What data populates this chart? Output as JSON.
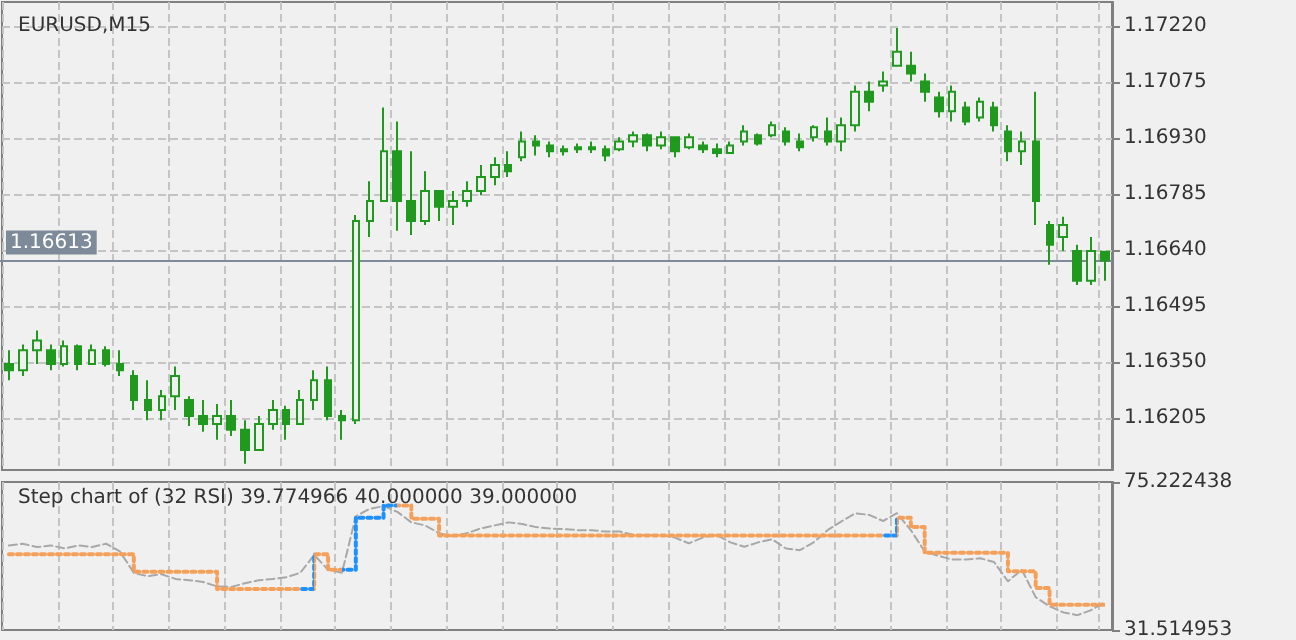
{
  "chart_data": [
    {
      "type": "candlestick",
      "title": "EURUSD,M15",
      "color": "#1f9a1f",
      "grid": true,
      "tick_labels": "y",
      "categories": [
        null,
        null,
        null,
        null,
        null,
        null,
        null,
        null,
        null,
        null,
        null,
        null,
        null,
        null,
        null,
        null,
        null,
        null,
        null,
        null,
        null,
        null,
        null,
        null,
        null,
        null,
        null,
        null,
        null,
        null,
        null,
        null,
        null,
        null,
        null,
        null,
        null,
        null,
        null,
        null,
        null,
        null,
        null,
        null,
        null,
        null,
        null,
        null,
        null,
        null,
        null,
        null,
        null,
        null,
        null,
        null,
        null,
        null,
        null,
        null,
        null,
        null,
        null,
        null,
        null,
        null,
        null,
        null,
        null,
        null,
        null,
        null,
        null,
        null,
        null,
        null,
        null,
        null,
        null,
        null
      ],
      "ohlc": [
        [
          1.16345,
          1.16381,
          1.16303,
          1.16329
        ],
        [
          1.16329,
          1.16396,
          1.16314,
          1.16381
        ],
        [
          1.16381,
          1.16432,
          1.16345,
          1.16406
        ],
        [
          1.16381,
          1.16396,
          1.16329,
          1.16345
        ],
        [
          1.16345,
          1.16406,
          1.16339,
          1.16391
        ],
        [
          1.16391,
          1.16396,
          1.16329,
          1.16345
        ],
        [
          1.16345,
          1.16396,
          1.16345,
          1.16381
        ],
        [
          1.16381,
          1.16391,
          1.16339,
          1.16345
        ],
        [
          1.16345,
          1.16381,
          1.16314,
          1.16329
        ],
        [
          1.16314,
          1.16329,
          1.16226,
          1.16252
        ],
        [
          1.16252,
          1.16303,
          1.162,
          1.16226
        ],
        [
          1.16226,
          1.16278,
          1.162,
          1.16262
        ],
        [
          1.16262,
          1.16339,
          1.16226,
          1.16314
        ],
        [
          1.16252,
          1.16262,
          1.16185,
          1.16211
        ],
        [
          1.16211,
          1.16252,
          1.1617,
          1.1619
        ],
        [
          1.1619,
          1.16242,
          1.16149,
          1.16211
        ],
        [
          1.16211,
          1.16252,
          1.16159,
          1.16175
        ],
        [
          1.16175,
          1.162,
          1.16087,
          1.16123
        ],
        [
          1.16123,
          1.16211,
          1.16123,
          1.1619
        ],
        [
          1.1619,
          1.16252,
          1.16175,
          1.16226
        ],
        [
          1.16226,
          1.16237,
          1.16149,
          1.1619
        ],
        [
          1.1619,
          1.16278,
          1.1619,
          1.16252
        ],
        [
          1.16252,
          1.16329,
          1.16226,
          1.16303
        ],
        [
          1.16303,
          1.16339,
          1.162,
          1.16211
        ],
        [
          1.16211,
          1.16226,
          1.16149,
          1.162
        ],
        [
          1.162,
          1.16731,
          1.1619,
          1.16715
        ],
        [
          1.16715,
          1.16818,
          1.16674,
          1.16767
        ],
        [
          1.16767,
          1.17009,
          1.16767,
          1.16896
        ],
        [
          1.16896,
          1.16973,
          1.1669,
          1.16767
        ],
        [
          1.16767,
          1.16896,
          1.16679,
          1.16715
        ],
        [
          1.16715,
          1.16844,
          1.16705,
          1.16793
        ],
        [
          1.16793,
          1.16793,
          1.16715,
          1.16752
        ],
        [
          1.16752,
          1.16793,
          1.16705,
          1.16767
        ],
        [
          1.16767,
          1.16818,
          1.16752,
          1.16793
        ],
        [
          1.16793,
          1.1686,
          1.16782,
          1.16829
        ],
        [
          1.16829,
          1.1688,
          1.16808,
          1.1686
        ],
        [
          1.1686,
          1.16896,
          1.16829,
          1.16844
        ],
        [
          1.1688,
          1.16947,
          1.1687,
          1.16921
        ],
        [
          1.16921,
          1.16937,
          1.16885,
          1.16911
        ],
        [
          1.16911,
          1.16921,
          1.1688,
          1.16896
        ],
        [
          1.16896,
          1.16911,
          1.16885,
          1.16901
        ],
        [
          1.16901,
          1.16916,
          1.16891,
          1.16906
        ],
        [
          1.16906,
          1.16921,
          1.16891,
          1.16901
        ],
        [
          1.16901,
          1.16911,
          1.1687,
          1.16885
        ],
        [
          1.16901,
          1.16932,
          1.16896,
          1.16921
        ],
        [
          1.16921,
          1.16947,
          1.16906,
          1.16937
        ],
        [
          1.16937,
          1.16942,
          1.16896,
          1.16911
        ],
        [
          1.16911,
          1.16947,
          1.16901,
          1.16932
        ],
        [
          1.16932,
          1.16932,
          1.1688,
          1.16896
        ],
        [
          1.16906,
          1.16942,
          1.16901,
          1.16932
        ],
        [
          1.16911,
          1.16921,
          1.16891,
          1.16901
        ],
        [
          1.16901,
          1.16916,
          1.1688,
          1.16891
        ],
        [
          1.16891,
          1.16921,
          1.16891,
          1.16911
        ],
        [
          1.16921,
          1.16963,
          1.16911,
          1.16947
        ],
        [
          1.16937,
          1.16942,
          1.16911,
          1.16916
        ],
        [
          1.16937,
          1.16973,
          1.16932,
          1.16963
        ],
        [
          1.16947,
          1.16958,
          1.16911,
          1.16921
        ],
        [
          1.16921,
          1.16942,
          1.16896,
          1.16906
        ],
        [
          1.16932,
          1.16963,
          1.16921,
          1.16958
        ],
        [
          1.16947,
          1.16983,
          1.16911,
          1.16921
        ],
        [
          1.16921,
          1.16983,
          1.16896,
          1.16963
        ],
        [
          1.16963,
          1.17066,
          1.16947,
          1.1705
        ],
        [
          1.1705,
          1.17076,
          1.16999,
          1.17024
        ],
        [
          1.17066,
          1.17102,
          1.1705,
          1.17076
        ],
        [
          1.17117,
          1.17215,
          1.17117,
          1.17153
        ],
        [
          1.17117,
          1.17153,
          1.17076,
          1.17097
        ],
        [
          1.17076,
          1.17097,
          1.17024,
          1.1705
        ],
        [
          1.17035,
          1.1705,
          1.16983,
          1.16999
        ],
        [
          1.16999,
          1.17066,
          1.16973,
          1.1705
        ],
        [
          1.17009,
          1.17024,
          1.16963,
          1.16973
        ],
        [
          1.16983,
          1.17035,
          1.16973,
          1.17024
        ],
        [
          1.17009,
          1.17024,
          1.16947,
          1.16963
        ],
        [
          1.16947,
          1.16963,
          1.1687,
          1.16896
        ],
        [
          1.16896,
          1.16947,
          1.1686,
          1.16921
        ],
        [
          1.16921,
          1.1705,
          1.16705,
          1.16767
        ],
        [
          1.16705,
          1.16715,
          1.16602,
          1.16654
        ],
        [
          1.16674,
          1.16726,
          1.16638,
          1.16705
        ],
        [
          1.16638,
          1.16654,
          1.1655,
          1.16561
        ],
        [
          1.16561,
          1.16674,
          1.1655,
          1.16638
        ],
        [
          1.16636,
          1.16638,
          1.16561,
          1.16613
        ]
      ],
      "ylim": [
        1.16071,
        1.17282
      ],
      "yticks": [
        {
          "value": 1.16205,
          "label": "1.16205"
        },
        {
          "value": 1.1635,
          "label": "1.16350"
        },
        {
          "value": 1.16495,
          "label": "1.16495"
        },
        {
          "value": 1.1664,
          "label": "1.16640"
        },
        {
          "value": 1.16785,
          "label": "1.16785"
        },
        {
          "value": 1.1693,
          "label": "1.16930"
        },
        {
          "value": 1.17075,
          "label": "1.17075"
        },
        {
          "value": 1.1722,
          "label": "1.17220"
        }
      ],
      "ref_lines": [
        {
          "axis": "y",
          "value": 1.16613,
          "label": "1.16613",
          "color": "#7d8a99"
        }
      ]
    },
    {
      "type": "step",
      "title": "Step chart of (32 RSI) 39.774966 40.000000 39.000000",
      "grid": "x",
      "tick_labels": "y",
      "marker": "none",
      "categories": [
        null,
        null,
        null,
        null,
        null,
        null,
        null,
        null,
        null,
        null,
        null,
        null,
        null,
        null,
        null,
        null,
        null,
        null,
        null,
        null,
        null,
        null,
        null,
        null,
        null,
        null,
        null,
        null,
        null,
        null,
        null,
        null,
        null,
        null,
        null,
        null,
        null,
        null,
        null,
        null,
        null,
        null,
        null,
        null,
        null,
        null,
        null,
        null,
        null,
        null,
        null,
        null,
        null,
        null,
        null,
        null,
        null,
        null,
        null,
        null,
        null,
        null,
        null,
        null,
        null,
        null,
        null,
        null,
        null,
        null,
        null,
        null,
        null,
        null,
        null,
        null,
        null,
        null,
        null,
        null
      ],
      "ylim": [
        31.514953,
        75.222438
      ],
      "yticks": [
        31.514953,
        75.222438
      ],
      "series": [
        {
          "type": "line",
          "color": "#a8a8a8",
          "line_style": "dashed",
          "values": [
            56.5,
            57,
            56,
            56.5,
            55.6,
            56.5,
            56,
            57,
            54.7,
            48.4,
            47.4,
            48,
            46.6,
            46.2,
            45.7,
            44.4,
            44.2,
            45.3,
            46.2,
            46.6,
            47.1,
            48.4,
            53.7,
            49.3,
            48.4,
            65.1,
            67.3,
            68.1,
            66.4,
            63.3,
            62.4,
            60.1,
            59.2,
            60.1,
            61.5,
            62.4,
            63.3,
            62.8,
            61.9,
            61.5,
            61.3,
            61,
            61,
            60.6,
            60.6,
            59.6,
            59.6,
            59.6,
            58.8,
            57.1,
            58.8,
            59.6,
            57.4,
            56.1,
            57.4,
            58.3,
            55.6,
            55.1,
            57.4,
            61,
            63.6,
            66,
            65.5,
            63.7,
            66,
            61,
            54.7,
            53.4,
            52.3,
            52.3,
            52.7,
            51.6,
            45.9,
            49.3,
            41.2,
            38.5,
            36.7,
            35.9,
            37.4,
            39.8
          ]
        },
        {
          "type": "step",
          "line_style": "dotted",
          "values": [
            53.9,
            53.9,
            53.9,
            53.9,
            53.9,
            53.9,
            53.9,
            53.9,
            53.9,
            48.7,
            48.7,
            48.7,
            48.7,
            48.7,
            48.7,
            43.6,
            43.6,
            43.6,
            43.6,
            43.6,
            43.6,
            43.6,
            53.9,
            49.3,
            49.3,
            64.7,
            64.7,
            68.3,
            68.3,
            64.4,
            64.4,
            59.4,
            59.4,
            59.4,
            59.4,
            59.4,
            59.4,
            59.4,
            59.4,
            59.4,
            59.4,
            59.4,
            59.4,
            59.4,
            59.4,
            59.4,
            59.4,
            59.4,
            59.4,
            59.4,
            59.4,
            59.4,
            59.4,
            59.4,
            59.4,
            59.4,
            59.4,
            59.4,
            59.4,
            59.4,
            59.4,
            59.4,
            59.4,
            59.4,
            64.7,
            61.9,
            54.3,
            54.3,
            54.3,
            54.3,
            54.3,
            54.3,
            48.9,
            48.9,
            43.9,
            39,
            39,
            39,
            39,
            39
          ],
          "colors": [
            "#f5a05a",
            "#f5a05a",
            "#f5a05a",
            "#f5a05a",
            "#f5a05a",
            "#f5a05a",
            "#f5a05a",
            "#f5a05a",
            "#f5a05a",
            "#f5a05a",
            "#f5a05a",
            "#f5a05a",
            "#f5a05a",
            "#f5a05a",
            "#f5a05a",
            "#f5a05a",
            "#f5a05a",
            "#f5a05a",
            "#f5a05a",
            "#f5a05a",
            "#f5a05a",
            "#f5a05a",
            "#1e90ff",
            "#f5a05a",
            "#f5a05a",
            "#1e90ff",
            "#1e90ff",
            "#1e90ff",
            "#1e90ff",
            "#f5a05a",
            "#f5a05a",
            "#f5a05a",
            "#f5a05a",
            "#f5a05a",
            "#f5a05a",
            "#f5a05a",
            "#f5a05a",
            "#f5a05a",
            "#f5a05a",
            "#f5a05a",
            "#f5a05a",
            "#f5a05a",
            "#f5a05a",
            "#f5a05a",
            "#f5a05a",
            "#f5a05a",
            "#f5a05a",
            "#f5a05a",
            "#f5a05a",
            "#f5a05a",
            "#f5a05a",
            "#f5a05a",
            "#f5a05a",
            "#f5a05a",
            "#f5a05a",
            "#f5a05a",
            "#f5a05a",
            "#f5a05a",
            "#f5a05a",
            "#f5a05a",
            "#f5a05a",
            "#f5a05a",
            "#f5a05a",
            "#f5a05a",
            "#1e90ff",
            "#f5a05a",
            "#f5a05a",
            "#f5a05a",
            "#f5a05a",
            "#f5a05a",
            "#f5a05a",
            "#f5a05a",
            "#f5a05a",
            "#f5a05a",
            "#f5a05a",
            "#f5a05a",
            "#f5a05a",
            "#f5a05a",
            "#f5a05a",
            "#f5a05a"
          ]
        }
      ]
    }
  ]
}
